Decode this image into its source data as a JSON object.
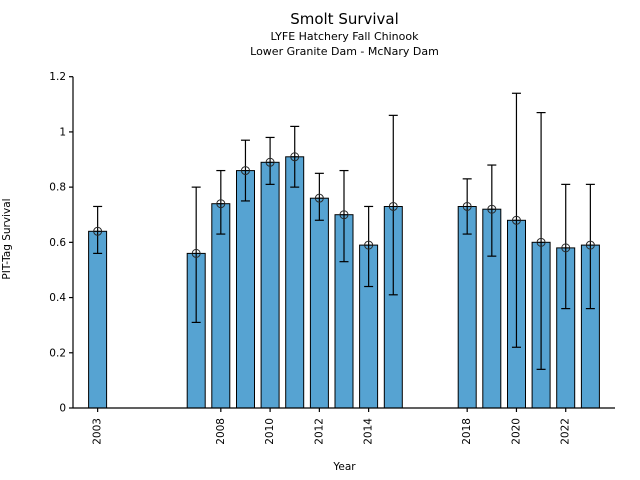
{
  "title": "Smolt Survival",
  "subtitle1": "LYFE Hatchery Fall Chinook",
  "subtitle2": "Lower Granite Dam - McNary Dam",
  "chart_data": {
    "type": "bar",
    "title": "Smolt Survival",
    "subtitle": [
      "LYFE Hatchery Fall Chinook",
      "Lower Granite Dam - McNary Dam"
    ],
    "xlabel": "Year",
    "ylabel": "PIT-Tag Survival",
    "xlim": [
      2002,
      2024
    ],
    "ylim": [
      0,
      1.2
    ],
    "yticks": [
      0,
      0.2,
      0.4,
      0.6,
      0.8,
      1,
      1.2
    ],
    "ytick_labels": [
      "0",
      "0.2",
      "0.4",
      "0.6",
      "0.8",
      "1",
      "1.2"
    ],
    "xticks": [
      2003,
      2008,
      2010,
      2012,
      2014,
      2018,
      2020,
      2022
    ],
    "grid": false,
    "legend": "none",
    "bar_color": "#56a3d2",
    "bar_edge_color": "#000000",
    "error_bar_color": "#000000",
    "marker": "circle-plus",
    "series": [
      {
        "name": "PIT-Tag Survival",
        "points": [
          {
            "year": 2003,
            "value": 0.64,
            "ci_low": 0.56,
            "ci_high": 0.73
          },
          {
            "year": 2007,
            "value": 0.56,
            "ci_low": 0.31,
            "ci_high": 0.8
          },
          {
            "year": 2008,
            "value": 0.74,
            "ci_low": 0.63,
            "ci_high": 0.86
          },
          {
            "year": 2009,
            "value": 0.86,
            "ci_low": 0.75,
            "ci_high": 0.97
          },
          {
            "year": 2010,
            "value": 0.89,
            "ci_low": 0.81,
            "ci_high": 0.98
          },
          {
            "year": 2011,
            "value": 0.91,
            "ci_low": 0.8,
            "ci_high": 1.02
          },
          {
            "year": 2012,
            "value": 0.76,
            "ci_low": 0.68,
            "ci_high": 0.85
          },
          {
            "year": 2013,
            "value": 0.7,
            "ci_low": 0.53,
            "ci_high": 0.86
          },
          {
            "year": 2014,
            "value": 0.59,
            "ci_low": 0.44,
            "ci_high": 0.73
          },
          {
            "year": 2015,
            "value": 0.73,
            "ci_low": 0.41,
            "ci_high": 1.06
          },
          {
            "year": 2018,
            "value": 0.73,
            "ci_low": 0.63,
            "ci_high": 0.83
          },
          {
            "year": 2019,
            "value": 0.72,
            "ci_low": 0.55,
            "ci_high": 0.88
          },
          {
            "year": 2020,
            "value": 0.68,
            "ci_low": 0.22,
            "ci_high": 1.14
          },
          {
            "year": 2021,
            "value": 0.6,
            "ci_low": 0.14,
            "ci_high": 1.07
          },
          {
            "year": 2022,
            "value": 0.58,
            "ci_low": 0.36,
            "ci_high": 0.81
          },
          {
            "year": 2023,
            "value": 0.59,
            "ci_low": 0.36,
            "ci_high": 0.81
          }
        ]
      }
    ]
  }
}
